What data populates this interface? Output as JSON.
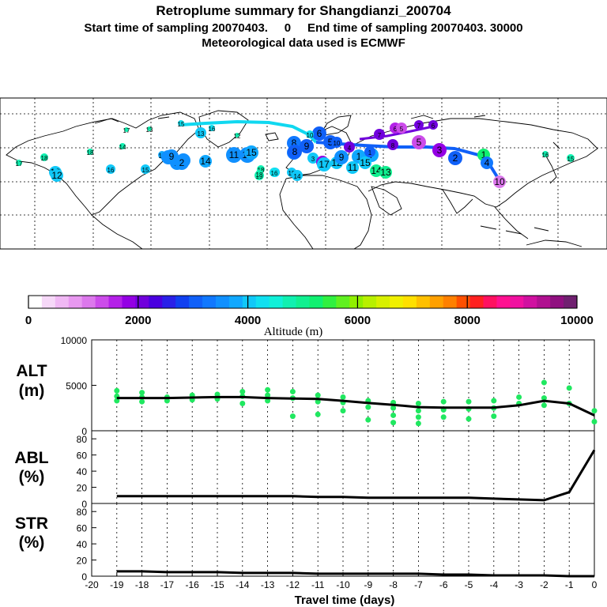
{
  "header": {
    "title": "Retroplume summary for Shangdianzi_200704",
    "subtitle": "Start time of sampling 20070403.     0     End time of sampling 20070403. 30000",
    "met_line": "Meteorological data used is ECMWF"
  },
  "colorbar": {
    "label": "Altitude (m)",
    "ticks": [
      "0",
      "2000",
      "4000",
      "6000",
      "8000",
      "10000"
    ],
    "colors": [
      "#ffffff",
      "#f6d8f8",
      "#f0b8f4",
      "#e898f0",
      "#dc78ec",
      "#cc4cea",
      "#b420e8",
      "#9400e4",
      "#7000dc",
      "#4a00e0",
      "#2a20e8",
      "#1040f0",
      "#1060f8",
      "#1078ff",
      "#1090ff",
      "#10a8ff",
      "#10c8f8",
      "#10e0f0",
      "#10f0d8",
      "#10f0b0",
      "#10f090",
      "#10f070",
      "#30f040",
      "#60f020",
      "#90f000",
      "#b8f000",
      "#d8f000",
      "#f0f000",
      "#ffe000",
      "#ffc000",
      "#ffa000",
      "#ff8000",
      "#ff5000",
      "#ff2020",
      "#ff1060",
      "#ff1090",
      "#f010a0",
      "#d010a0",
      "#b01090",
      "#901080",
      "#702070"
    ]
  },
  "map": {
    "trajectory_color": "#10d8f0",
    "trajectory_inner_color": "#1060f8",
    "labels": [
      {
        "t": "17"
      },
      {
        "t": "18"
      },
      {
        "t": "19"
      },
      {
        "t": "18"
      },
      {
        "t": "14"
      },
      {
        "t": "17"
      },
      {
        "t": "13"
      },
      {
        "t": "15"
      },
      {
        "t": "16"
      },
      {
        "t": "12"
      },
      {
        "t": "15"
      },
      {
        "t": "16"
      },
      {
        "t": "12"
      },
      {
        "t": "13"
      },
      {
        "t": "4"
      },
      {
        "t": "2"
      },
      {
        "t": "17"
      },
      {
        "t": "14"
      },
      {
        "t": "19"
      },
      {
        "t": "18"
      },
      {
        "t": "1"
      },
      {
        "t": "2"
      },
      {
        "t": "9"
      },
      {
        "t": "8"
      },
      {
        "t": "3"
      },
      {
        "t": "16"
      },
      {
        "t": "15"
      },
      {
        "t": "14"
      },
      {
        "t": "10"
      },
      {
        "t": "6"
      },
      {
        "t": "8"
      },
      {
        "t": "9"
      },
      {
        "t": "3"
      },
      {
        "t": "5"
      },
      {
        "t": "10"
      },
      {
        "t": "12"
      },
      {
        "t": "17"
      },
      {
        "t": "1"
      },
      {
        "t": "7"
      },
      {
        "t": "11"
      },
      {
        "t": "4"
      },
      {
        "t": "10"
      },
      {
        "t": "9"
      },
      {
        "t": "7"
      },
      {
        "t": "1"
      },
      {
        "t": "6"
      },
      {
        "t": "5"
      },
      {
        "t": "14"
      },
      {
        "t": "13"
      },
      {
        "t": "18"
      },
      {
        "t": "15"
      },
      {
        "t": "8"
      },
      {
        "t": "5"
      },
      {
        "t": "7"
      },
      {
        "t": "6"
      },
      {
        "t": "3"
      },
      {
        "t": "2"
      },
      {
        "t": "1"
      },
      {
        "t": "4"
      },
      {
        "t": "10"
      },
      {
        "t": "11"
      },
      {
        "t": "13"
      },
      {
        "t": "15"
      },
      {
        "t": "16"
      },
      {
        "t": "16"
      },
      {
        "t": "15"
      }
    ]
  },
  "panels": {
    "alt": {
      "name": "ALT",
      "unit": "(m)"
    },
    "abl": {
      "name": "ABL",
      "unit": "(%)"
    },
    "str": {
      "name": "STR",
      "unit": "(%)"
    },
    "xlabel": "Travel time (days)"
  },
  "chart_data": [
    {
      "type": "line",
      "title": "ALT",
      "ylabel": "(m)",
      "xlabel": "Travel time (days)",
      "xlim": [
        -20,
        0
      ],
      "ylim": [
        0,
        10000
      ],
      "yticks": [
        0,
        5000,
        10000
      ],
      "x": [
        -19,
        -18,
        -17,
        -16,
        -15,
        -14,
        -13,
        -12,
        -11,
        -10,
        -9,
        -8,
        -7,
        -6,
        -5,
        -4,
        -3,
        -2,
        -1,
        0
      ],
      "series": [
        {
          "name": "mean altitude",
          "values": [
            3600,
            3600,
            3600,
            3650,
            3700,
            3700,
            3600,
            3550,
            3500,
            3300,
            3050,
            2850,
            2600,
            2550,
            2550,
            2550,
            2800,
            3300,
            3000,
            1700
          ]
        }
      ],
      "scatter_color": "#20e860",
      "scatter_points": [
        [
          -19,
          3300
        ],
        [
          -19,
          3800
        ],
        [
          -19,
          4400
        ],
        [
          -18,
          3200
        ],
        [
          -18,
          3700
        ],
        [
          -18,
          4200
        ],
        [
          -17,
          3300
        ],
        [
          -17,
          3700
        ],
        [
          -16,
          3400
        ],
        [
          -16,
          3900
        ],
        [
          -15,
          3500
        ],
        [
          -15,
          4000
        ],
        [
          -14,
          3000
        ],
        [
          -14,
          3800
        ],
        [
          -14,
          4300
        ],
        [
          -13,
          3300
        ],
        [
          -13,
          3900
        ],
        [
          -13,
          4500
        ],
        [
          -12,
          3600
        ],
        [
          -12,
          4300
        ],
        [
          -12,
          1600
        ],
        [
          -11,
          3200
        ],
        [
          -11,
          3900
        ],
        [
          -11,
          1800
        ],
        [
          -10,
          3100
        ],
        [
          -10,
          3700
        ],
        [
          -10,
          2200
        ],
        [
          -9,
          2600
        ],
        [
          -9,
          3300
        ],
        [
          -9,
          1200
        ],
        [
          -8,
          2500
        ],
        [
          -8,
          3100
        ],
        [
          -8,
          1700
        ],
        [
          -8,
          900
        ],
        [
          -7,
          2200
        ],
        [
          -7,
          3000
        ],
        [
          -7,
          1500
        ],
        [
          -7,
          800
        ],
        [
          -6,
          2300
        ],
        [
          -6,
          3200
        ],
        [
          -6,
          1500
        ],
        [
          -5,
          2400
        ],
        [
          -5,
          3200
        ],
        [
          -5,
          1300
        ],
        [
          -4,
          2500
        ],
        [
          -4,
          3300
        ],
        [
          -4,
          1600
        ],
        [
          -3,
          3000
        ],
        [
          -3,
          3700
        ],
        [
          -2,
          2800
        ],
        [
          -2,
          3600
        ],
        [
          -2,
          5300
        ],
        [
          -1,
          3000
        ],
        [
          -1,
          4700
        ],
        [
          0,
          1000
        ],
        [
          0,
          2200
        ]
      ]
    },
    {
      "type": "line",
      "title": "ABL",
      "ylabel": "(%)",
      "xlim": [
        -20,
        0
      ],
      "ylim": [
        0,
        90
      ],
      "yticks": [
        0,
        20,
        40,
        60,
        80
      ],
      "x": [
        -19,
        -18,
        -17,
        -16,
        -15,
        -14,
        -13,
        -12,
        -11,
        -10,
        -9,
        -8,
        -7,
        -6,
        -5,
        -4,
        -3,
        -2,
        -1,
        0
      ],
      "series": [
        {
          "name": "ABL fraction",
          "values": [
            9,
            9,
            9,
            9,
            9,
            9,
            9,
            9,
            8,
            8,
            7,
            7,
            7,
            7,
            7,
            6,
            5,
            4,
            14,
            66
          ]
        }
      ]
    },
    {
      "type": "line",
      "title": "STR",
      "ylabel": "(%)",
      "xlim": [
        -20,
        0
      ],
      "ylim": [
        0,
        90
      ],
      "yticks": [
        0,
        20,
        40,
        60,
        80
      ],
      "xticks": [
        "-20",
        "-19",
        "-18",
        "-17",
        "-16",
        "-15",
        "-14",
        "-13",
        "-12",
        "-11",
        "-10",
        "-9",
        "-8",
        "-7",
        "-6",
        "-5",
        "-4",
        "-3",
        "-2",
        "-1",
        "0"
      ],
      "x": [
        -19,
        -18,
        -17,
        -16,
        -15,
        -14,
        -13,
        -12,
        -11,
        -10,
        -9,
        -8,
        -7,
        -6,
        -5,
        -4,
        -3,
        -2,
        -1,
        0
      ],
      "series": [
        {
          "name": "stratospheric fraction",
          "values": [
            6,
            6,
            5,
            5,
            5,
            4,
            4,
            4,
            3,
            3,
            3,
            3,
            3,
            2,
            2,
            1,
            1,
            1,
            0,
            0
          ]
        }
      ]
    }
  ]
}
